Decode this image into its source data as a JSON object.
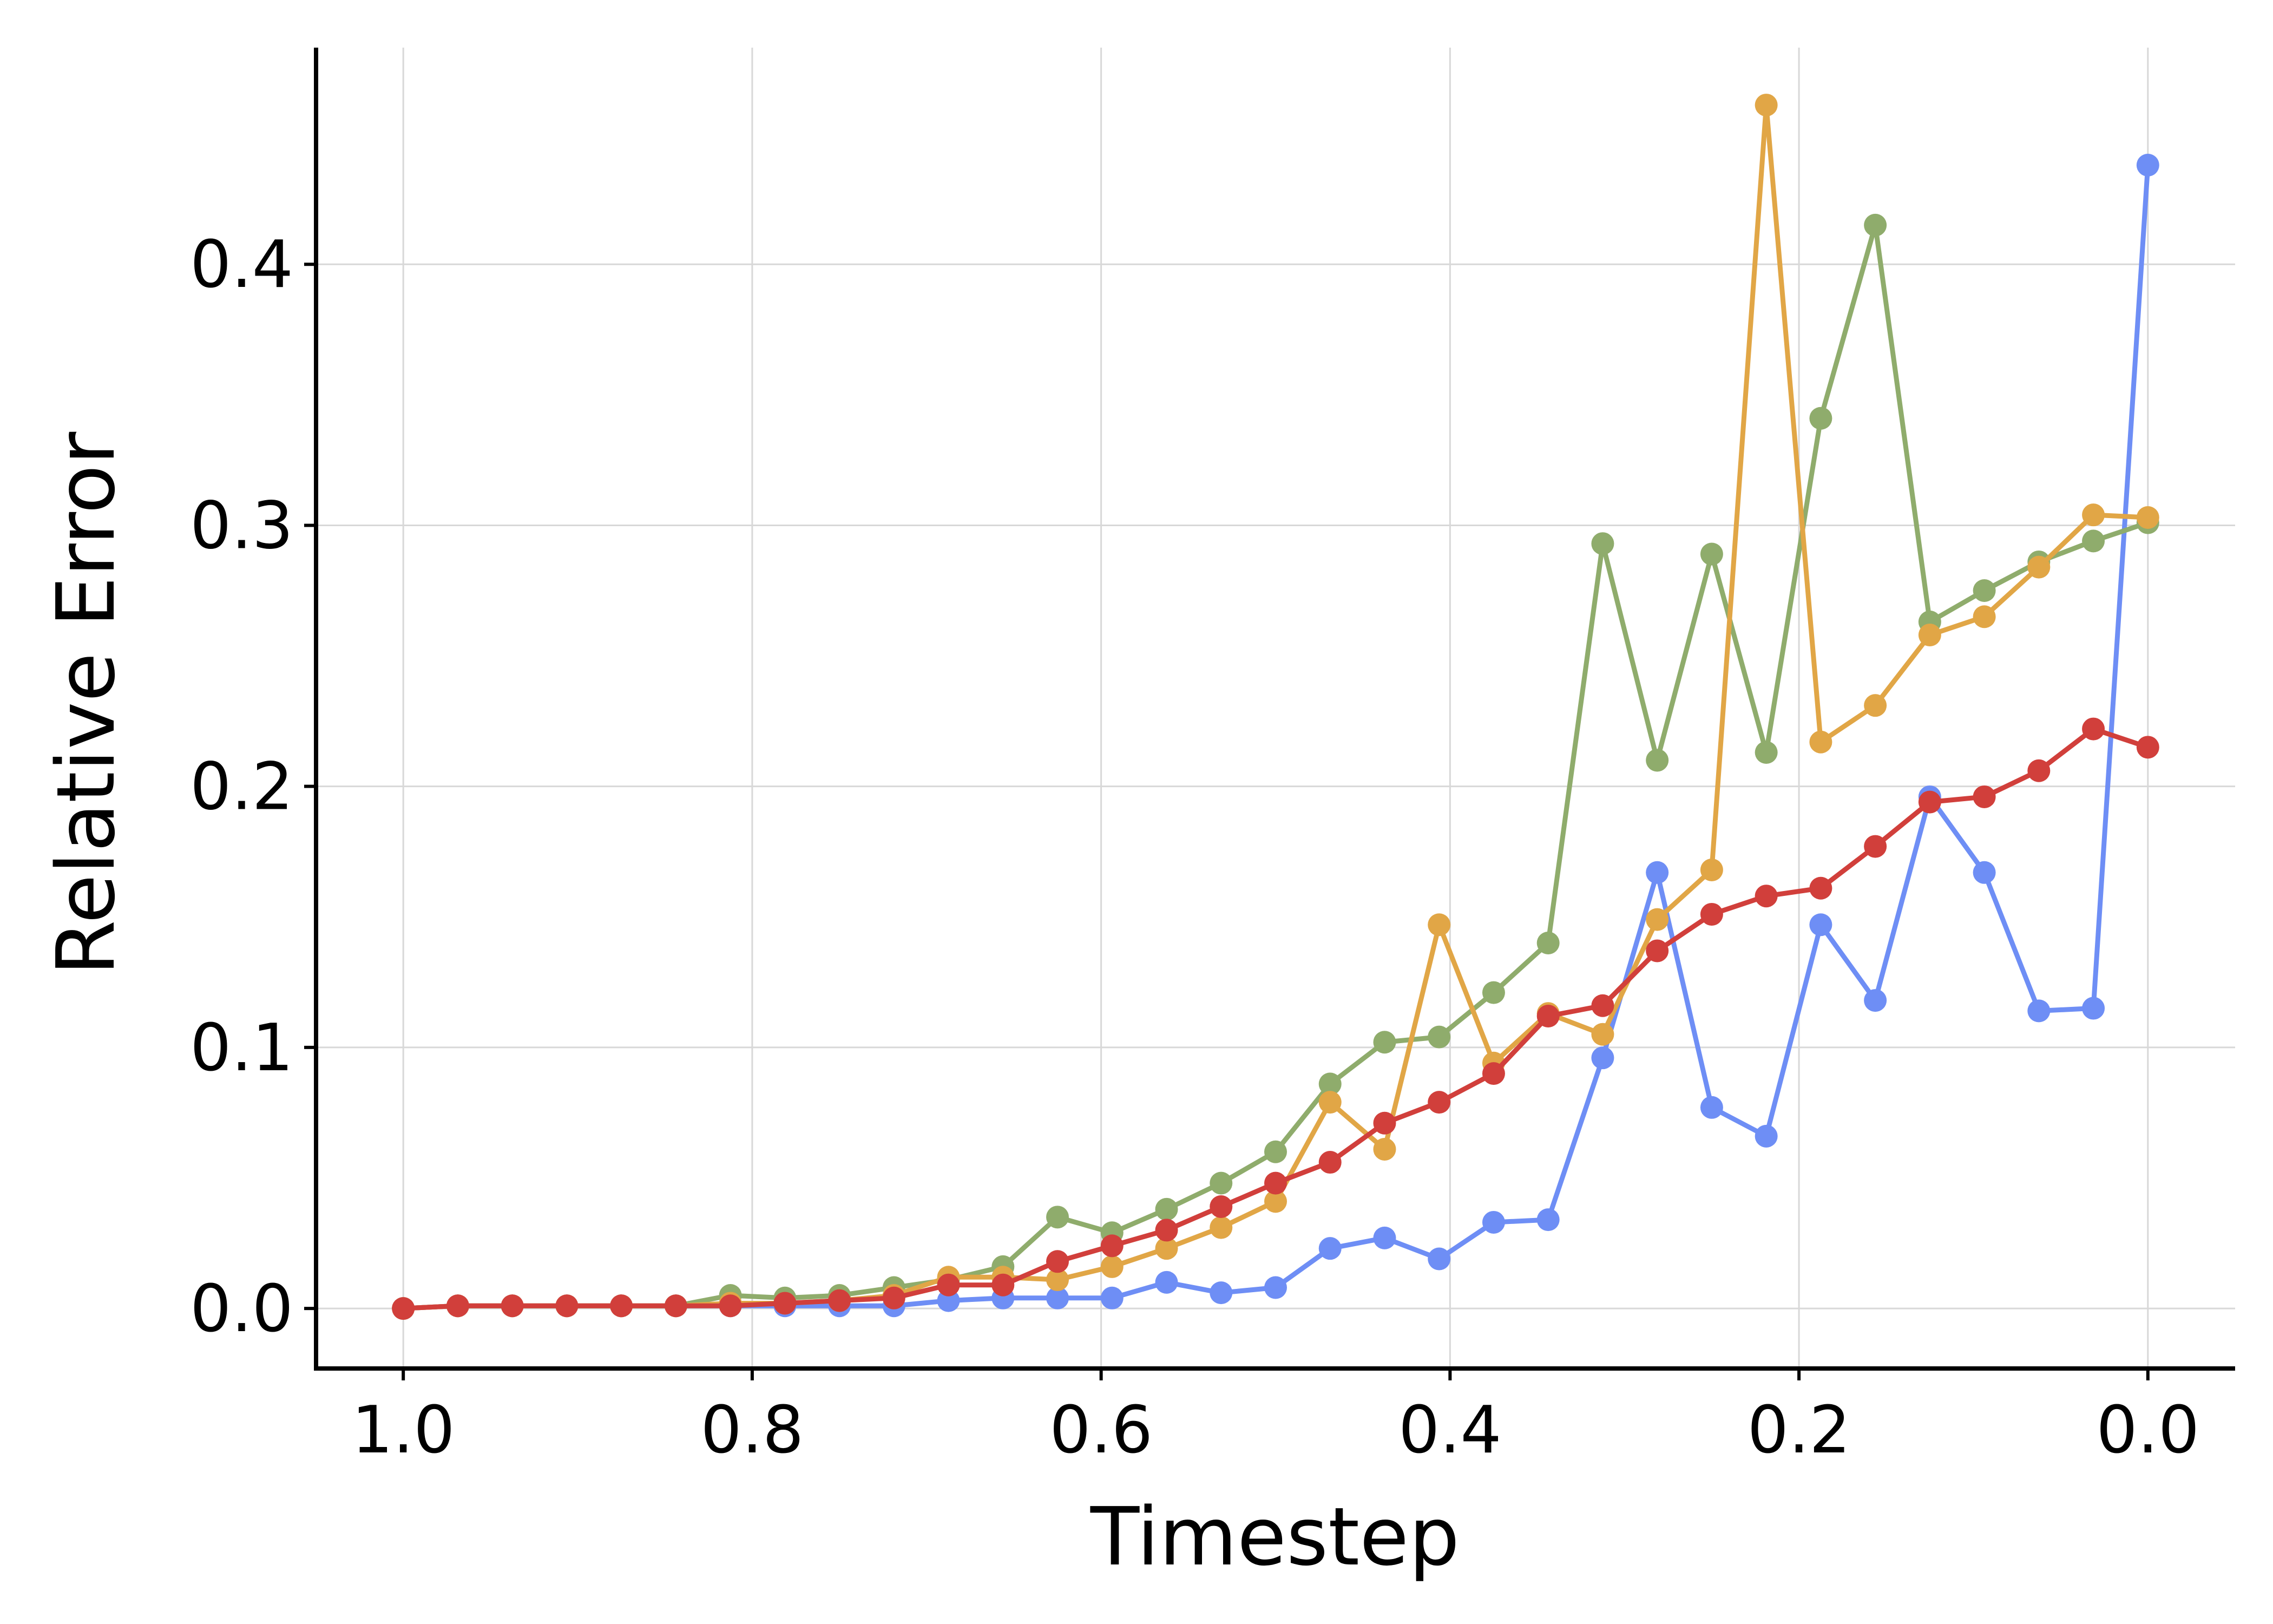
{
  "chart_data": {
    "type": "line",
    "title": "",
    "xlabel": "Timestep",
    "ylabel": "Relative Error",
    "xlim": [
      1.05,
      -0.05
    ],
    "ylim": [
      -0.023,
      0.483
    ],
    "x_inverted": true,
    "xticks": [
      1.0,
      0.8,
      0.6,
      0.4,
      0.2,
      0.0
    ],
    "xtick_labels": [
      "1.0",
      "0.8",
      "0.6",
      "0.4",
      "0.2",
      "0.0"
    ],
    "yticks": [
      0.0,
      0.1,
      0.2,
      0.3,
      0.4
    ],
    "ytick_labels": [
      "0.0",
      "0.1",
      "0.2",
      "0.3",
      "0.4"
    ],
    "grid": true,
    "legend": "none",
    "x": [
      1.0,
      0.96875,
      0.9375,
      0.90625,
      0.875,
      0.84375,
      0.8125,
      0.78125,
      0.75,
      0.71875,
      0.6875,
      0.65625,
      0.625,
      0.59375,
      0.5625,
      0.53125,
      0.5,
      0.46875,
      0.4375,
      0.40625,
      0.375,
      0.34375,
      0.3125,
      0.28125,
      0.25,
      0.21875,
      0.1875,
      0.15625,
      0.125,
      0.09375,
      0.0625,
      0.03125,
      0.0
    ],
    "series": [
      {
        "color": "#6e8ef5",
        "values": [
          0.0,
          0.001,
          0.001,
          0.001,
          0.001,
          0.001,
          0.001,
          0.001,
          0.001,
          0.001,
          0.003,
          0.004,
          0.004,
          0.004,
          0.01,
          0.006,
          0.008,
          0.023,
          0.027,
          0.019,
          0.033,
          0.034,
          0.096,
          0.167,
          0.077,
          0.066,
          0.147,
          0.118,
          0.196,
          0.167,
          0.114,
          0.115,
          0.438
        ]
      },
      {
        "color": "#8fac6c",
        "values": [
          0.0,
          0.001,
          0.001,
          0.001,
          0.001,
          0.001,
          0.005,
          0.004,
          0.005,
          0.008,
          0.011,
          0.016,
          0.035,
          0.029,
          0.038,
          0.048,
          0.06,
          0.086,
          0.102,
          0.104,
          0.121,
          0.14,
          0.293,
          0.21,
          0.289,
          0.213,
          0.341,
          0.415,
          0.263,
          0.275,
          0.286,
          0.294,
          0.301
        ]
      },
      {
        "color": "#e1a646",
        "values": [
          0.0,
          0.001,
          0.001,
          0.001,
          0.001,
          0.001,
          0.002,
          0.002,
          0.003,
          0.005,
          0.012,
          0.012,
          0.011,
          0.016,
          0.023,
          0.031,
          0.041,
          0.079,
          0.061,
          0.147,
          0.094,
          0.113,
          0.105,
          0.149,
          0.168,
          0.461,
          0.217,
          0.231,
          0.258,
          0.265,
          0.284,
          0.304,
          0.303
        ]
      },
      {
        "color": "#d13f3b",
        "values": [
          0.0,
          0.001,
          0.001,
          0.001,
          0.001,
          0.001,
          0.001,
          0.002,
          0.003,
          0.004,
          0.009,
          0.009,
          0.018,
          0.024,
          0.03,
          0.039,
          0.048,
          0.056,
          0.071,
          0.079,
          0.09,
          0.112,
          0.116,
          0.137,
          0.151,
          0.158,
          0.161,
          0.177,
          0.194,
          0.196,
          0.206,
          0.222,
          0.215
        ]
      }
    ]
  }
}
